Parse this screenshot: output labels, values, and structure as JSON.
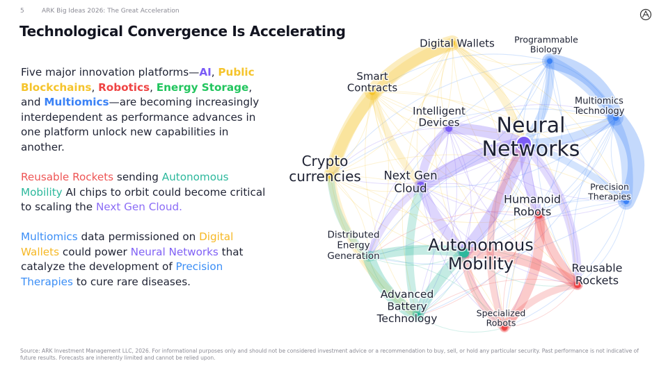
{
  "header": {
    "page_number": "5",
    "deck_title": "ARK Big Ideas 2026: The Great Acceleration"
  },
  "title": "Technological Convergence Is Accelerating",
  "paragraph1": {
    "intro": "Five major innovation platforms—",
    "ai": "AI",
    "comma1": ",",
    "blockchain": "Public Blockchains",
    "comma2": ", ",
    "robotics": "Robotics",
    "comma3": ", ",
    "energy": "Energy Storage",
    "and": ", and ",
    "multiomics": "Multiomics",
    "rest": "—are becoming increasingly interdependent as performance advances in one platform unlock new capabilities in another."
  },
  "paragraph2": {
    "rockets": "Reusable Rockets",
    "t1": " sending ",
    "autonomous": "Autonomous Mobility",
    "t2": " AI chips to orbit could become critical to scaling the ",
    "cloud": "Next Gen Cloud.",
    "t3": ""
  },
  "paragraph3": {
    "multiomics": "Multiomics",
    "t1": " data permissioned on ",
    "wallets": "Digital Wallets",
    "t2": " could power ",
    "nn": "Neural Networks",
    "t3": " that catalyze the development of ",
    "precision": "Precision Therapies",
    "t4": " to cure rare diseases."
  },
  "network": {
    "colors": {
      "ai": "#7b5cf6",
      "blockchain": "#f5c42c",
      "robotics": "#ef4444",
      "energy": "#2cb89c",
      "multiomics": "#3b82f6"
    },
    "nodes": [
      {
        "id": "wallets",
        "lines": [
          "Digital Wallets"
        ],
        "platform": "blockchain"
      },
      {
        "id": "biology",
        "lines": [
          "Programmable",
          "Biology"
        ],
        "platform": "multiomics"
      },
      {
        "id": "contracts",
        "lines": [
          "Smart",
          "Contracts"
        ],
        "platform": "blockchain"
      },
      {
        "id": "devices",
        "lines": [
          "Intelligent",
          "Devices"
        ],
        "platform": "ai"
      },
      {
        "id": "neural",
        "lines": [
          "Neural",
          "Networks"
        ],
        "platform": "ai"
      },
      {
        "id": "multitech",
        "lines": [
          "Multiomics",
          "Technology"
        ],
        "platform": "multiomics"
      },
      {
        "id": "crypto",
        "lines": [
          "Crypto",
          "currencies"
        ],
        "platform": "blockchain"
      },
      {
        "id": "cloud",
        "lines": [
          "Next Gen",
          "Cloud"
        ],
        "platform": "ai"
      },
      {
        "id": "precision",
        "lines": [
          "Precision",
          "Therapies"
        ],
        "platform": "multiomics"
      },
      {
        "id": "humanoid",
        "lines": [
          "Humanoid",
          "Robots"
        ],
        "platform": "robotics"
      },
      {
        "id": "energygen",
        "lines": [
          "Distributed",
          "Energy",
          "Generation"
        ],
        "platform": "energy"
      },
      {
        "id": "mobility",
        "lines": [
          "Autonomous",
          "Mobility"
        ],
        "platform": "energy"
      },
      {
        "id": "rockets",
        "lines": [
          "Reusable",
          "Rockets"
        ],
        "platform": "robotics"
      },
      {
        "id": "battery",
        "lines": [
          "Advanced",
          "Battery",
          "Technology"
        ],
        "platform": "energy"
      },
      {
        "id": "robots",
        "lines": [
          "Specialized",
          "Robots"
        ],
        "platform": "robotics"
      }
    ]
  },
  "footer": "Source: ARK Investment Management LLC, 2026. For informational purposes only and should not be considered investment advice or a recommendation to buy, sell, or hold any particular security. Past performance is not indicative of future results. Forecasts are inherently limited and cannot be relied upon."
}
